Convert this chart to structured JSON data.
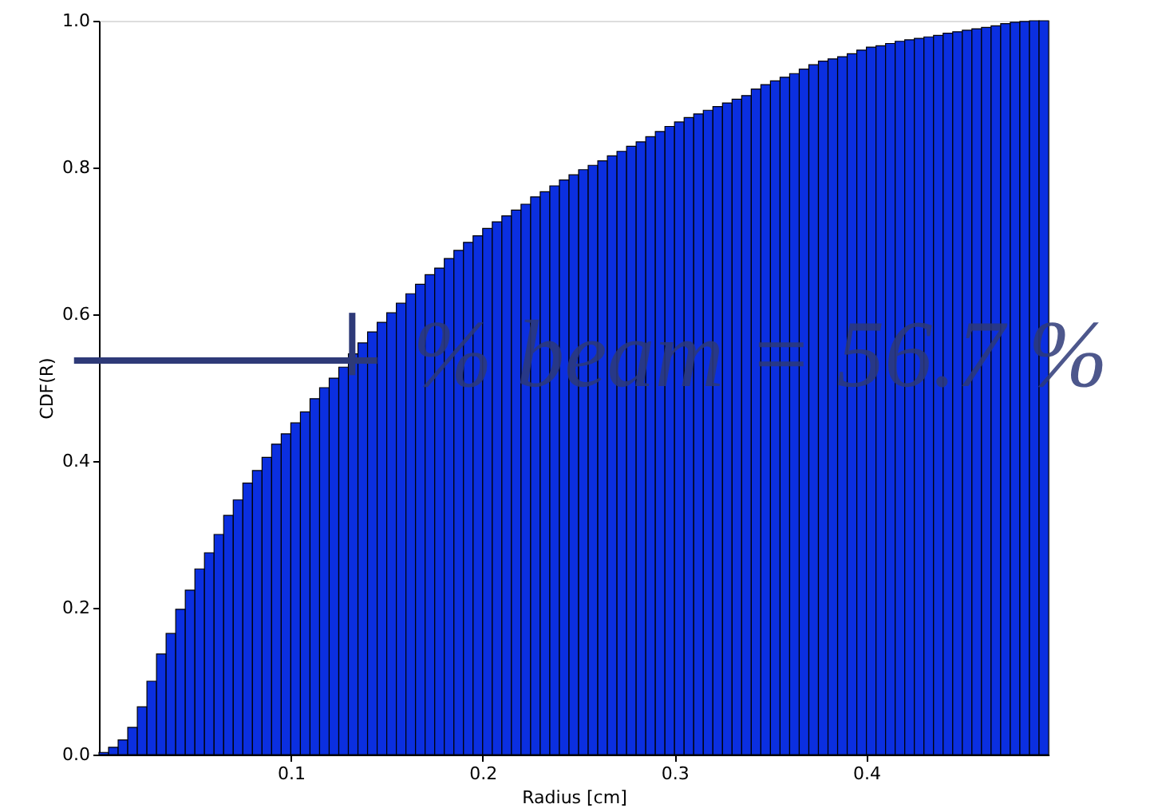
{
  "chart_data": {
    "type": "histogram",
    "xlabel": "Radius [cm]",
    "ylabel": "CDF(R)",
    "color": "#0b2fe0",
    "bins": [
      0,
      0.005,
      0.01,
      0.015,
      0.02,
      0.025,
      0.03,
      0.035,
      0.04,
      0.045,
      0.05,
      0.055,
      0.06,
      0.065,
      0.07,
      0.075,
      0.08,
      0.085,
      0.09,
      0.095,
      0.1,
      0.105,
      0.11,
      0.115,
      0.12,
      0.125,
      0.13,
      0.135,
      0.14,
      0.145,
      0.15,
      0.155,
      0.16,
      0.165,
      0.17,
      0.175,
      0.18,
      0.185,
      0.19,
      0.195,
      0.2,
      0.205,
      0.21,
      0.215,
      0.22,
      0.225,
      0.23,
      0.235,
      0.24,
      0.245,
      0.25,
      0.255,
      0.26,
      0.265,
      0.27,
      0.275,
      0.28,
      0.285,
      0.29,
      0.295,
      0.3,
      0.305,
      0.31,
      0.315,
      0.32,
      0.325,
      0.33,
      0.335,
      0.34,
      0.345,
      0.35,
      0.355,
      0.36,
      0.365,
      0.37,
      0.375,
      0.38,
      0.385,
      0.39,
      0.395,
      0.4,
      0.405,
      0.41,
      0.415,
      0.42,
      0.425,
      0.43,
      0.435,
      0.44,
      0.445,
      0.45,
      0.455,
      0.46,
      0.465,
      0.47,
      0.475,
      0.48,
      0.485,
      0.49,
      0.495
    ],
    "values": [
      0.003,
      0.01,
      0.02,
      0.037,
      0.065,
      0.1,
      0.137,
      0.165,
      0.198,
      0.224,
      0.253,
      0.275,
      0.3,
      0.326,
      0.347,
      0.37,
      0.387,
      0.405,
      0.423,
      0.437,
      0.452,
      0.467,
      0.485,
      0.5,
      0.513,
      0.528,
      0.546,
      0.561,
      0.576,
      0.589,
      0.602,
      0.615,
      0.628,
      0.641,
      0.654,
      0.663,
      0.676,
      0.687,
      0.698,
      0.707,
      0.717,
      0.726,
      0.734,
      0.742,
      0.75,
      0.76,
      0.767,
      0.775,
      0.783,
      0.79,
      0.797,
      0.803,
      0.809,
      0.816,
      0.822,
      0.829,
      0.835,
      0.842,
      0.849,
      0.856,
      0.862,
      0.868,
      0.873,
      0.878,
      0.883,
      0.888,
      0.893,
      0.898,
      0.907,
      0.913,
      0.918,
      0.923,
      0.928,
      0.934,
      0.94,
      0.945,
      0.948,
      0.951,
      0.955,
      0.96,
      0.964,
      0.966,
      0.969,
      0.972,
      0.974,
      0.976,
      0.978,
      0.98,
      0.983,
      0.985,
      0.987,
      0.989,
      0.991,
      0.993,
      0.996,
      0.998,
      0.999,
      1.0,
      1.0
    ],
    "xlim": [
      0,
      0.495
    ],
    "ylim": [
      0,
      1.0
    ],
    "xticks": [
      0.1,
      0.2,
      0.3,
      0.4
    ],
    "yticks": [
      {
        "value": 0,
        "label": "0.0"
      },
      0.2,
      0.4,
      0.6,
      0.8,
      {
        "value": 1.0,
        "label": "1.0"
      }
    ],
    "annotations": [
      {
        "text": "% beam = 56.7 %",
        "x": 0.132,
        "y": 0.537
      }
    ],
    "grid": false
  }
}
